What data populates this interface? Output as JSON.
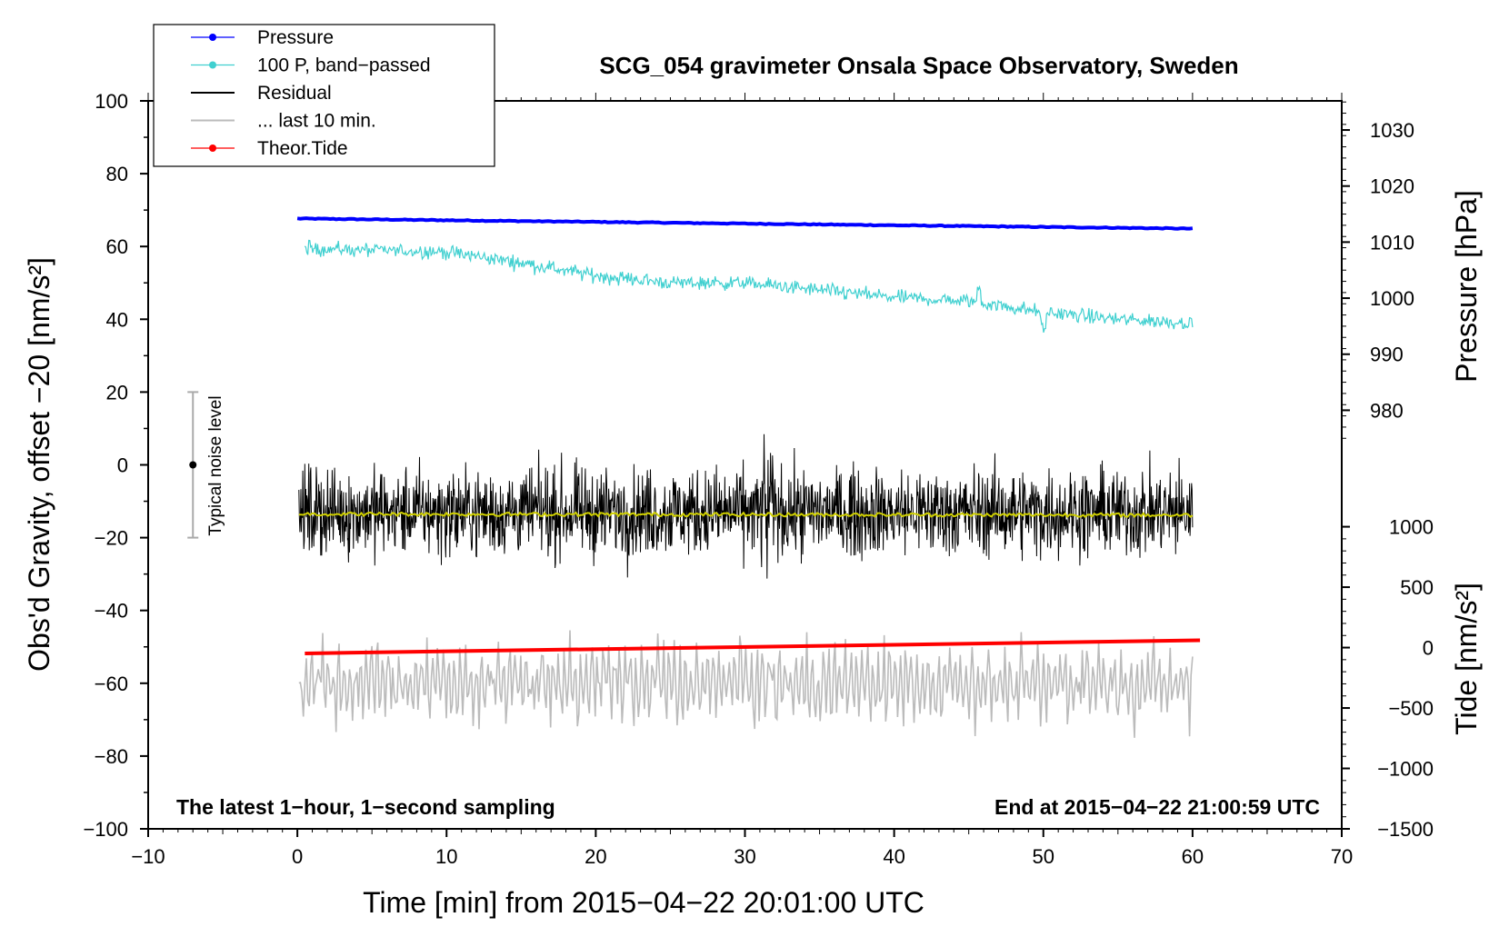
{
  "chart_data": {
    "type": "line",
    "title": "SCG_054 gravimeter Onsala Space Observatory, Sweden",
    "xlabel": "Time [min] from 2015−04−22 20:01:00 UTC",
    "ylabel_left": "Obs'd Gravity, offset −20 [nm/s²]",
    "ylabel_right_top": "Pressure [hPa]",
    "ylabel_right_bottom": "Tide [nm/s²]",
    "xlim": [
      -10,
      70
    ],
    "ylim": [
      -100,
      100
    ],
    "x_ticks": [
      -10,
      0,
      10,
      20,
      30,
      40,
      50,
      60,
      70
    ],
    "x_tick_labels": [
      "−10",
      "0",
      "10",
      "20",
      "30",
      "40",
      "50",
      "60",
      "70"
    ],
    "y_ticks": [
      100,
      80,
      60,
      40,
      20,
      0,
      -20,
      -40,
      -60,
      -80,
      -100
    ],
    "y_tick_labels": [
      "100",
      "80",
      "60",
      "40",
      "20",
      "0",
      "−20",
      "−40",
      "−60",
      "−80",
      "−100"
    ],
    "pressure_axis": {
      "ticks": [
        1030,
        1020,
        1010,
        1000,
        990,
        980
      ],
      "tick_labels": [
        "1030",
        "1020",
        "1010",
        "1000",
        "990",
        "980"
      ],
      "map_to_gravity": {
        "value_1030": 92,
        "value_980": 15
      }
    },
    "tide_axis": {
      "ticks": [
        1000,
        500,
        0,
        -500,
        -1000,
        -1500
      ],
      "tick_labels": [
        "1000",
        "500",
        "0",
        "−500",
        "−1000",
        "−1500"
      ],
      "map_to_gravity": {
        "value_1000": -17,
        "value_-1500": -100
      }
    },
    "series": [
      {
        "name": "Pressure",
        "color": "#0000ff",
        "unit": "hPa",
        "start": {
          "x": 0,
          "y": 1014.2
        },
        "end": {
          "x": 60,
          "y": 1012.4
        }
      },
      {
        "name": "100 P, band−passed",
        "color": "#40d0d0",
        "unit": "nm/s²",
        "points": [
          [
            0.5,
            59.5
          ],
          [
            5,
            59
          ],
          [
            10,
            58.5
          ],
          [
            15,
            55.5
          ],
          [
            20,
            52
          ],
          [
            25,
            50
          ],
          [
            30,
            50
          ],
          [
            35,
            48
          ],
          [
            40,
            46
          ],
          [
            45,
            45
          ],
          [
            50,
            42
          ],
          [
            55,
            40
          ],
          [
            60,
            39
          ]
        ],
        "noise": 1.2
      },
      {
        "name": "Residual",
        "color": "#000000",
        "unit": "nm/s²",
        "mean": -13,
        "range": [
          -38,
          10
        ]
      },
      {
        "name": "... last 10 min.",
        "color": "#bbbbbb",
        "unit": "nm/s²",
        "mean": -60,
        "range": [
          -84,
          -38
        ]
      },
      {
        "name": "Theor.Tide",
        "color": "#ff0000",
        "unit": "nm/s²",
        "start": {
          "x": 0.5,
          "y": -51.8
        },
        "end": {
          "x": 60.5,
          "y": -48.2
        }
      },
      {
        "name": "Residual mean",
        "color": "#d0d000",
        "unit": "nm/s²",
        "mean": -13.5
      }
    ],
    "legend": [
      {
        "label": "Pressure",
        "color": "#0000ff",
        "marker": true
      },
      {
        "label": "100 P, band−passed",
        "color": "#40d0d0",
        "marker": true
      },
      {
        "label": "Residual",
        "color": "#000000",
        "marker": false
      },
      {
        "label": "... last 10 min.",
        "color": "#bbbbbb",
        "marker": false
      },
      {
        "label": "Theor.Tide",
        "color": "#ff0000",
        "marker": true
      }
    ],
    "legend_position": "top-left",
    "noise_bar": {
      "label": "Typical noise level",
      "x": -7,
      "center": 0,
      "low": -20,
      "high": 20
    },
    "annotations": {
      "bottom_left": "The latest 1−hour, 1−second sampling",
      "bottom_right": "End at 2015−04−22 21:00:59 UTC"
    }
  }
}
